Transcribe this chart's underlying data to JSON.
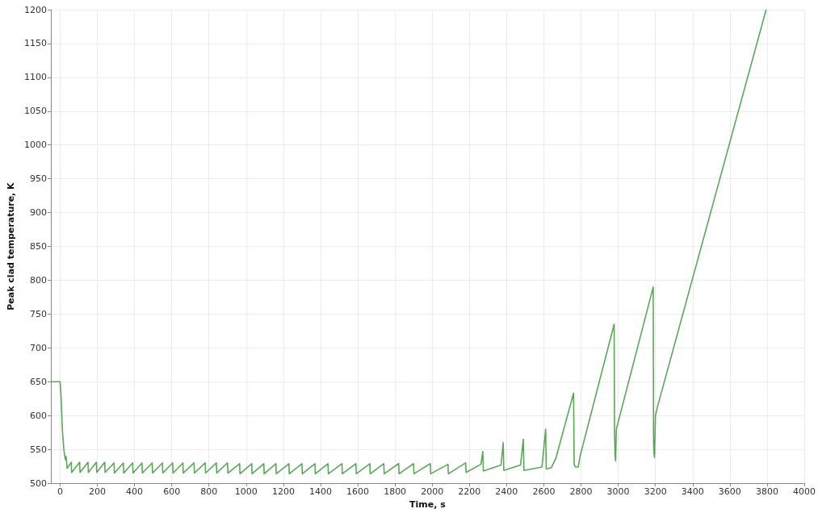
{
  "chart_data": {
    "type": "line",
    "xlabel": "Time, s",
    "ylabel": "Peak clad temperature, K",
    "xlim": [
      -50,
      4000
    ],
    "xticks": [
      0,
      200,
      400,
      600,
      800,
      1000,
      1200,
      1400,
      1600,
      1800,
      2000,
      2200,
      2400,
      2600,
      2800,
      3000,
      3200,
      3400,
      3600,
      3800,
      4000
    ],
    "ylim": [
      500,
      1200
    ],
    "yticks": [
      500,
      550,
      600,
      650,
      700,
      750,
      800,
      850,
      900,
      950,
      1000,
      1050,
      1100,
      1150,
      1200
    ],
    "grid": true,
    "marker": "none",
    "series": [
      {
        "color": "#5aa857",
        "x": [
          -50,
          0,
          5,
          12,
          20,
          28,
          32,
          38,
          60,
          62,
          105,
          107,
          150,
          152,
          195,
          197,
          240,
          242,
          290,
          292,
          340,
          342,
          390,
          392,
          440,
          442,
          495,
          497,
          550,
          552,
          605,
          607,
          660,
          662,
          720,
          722,
          780,
          782,
          840,
          842,
          900,
          902,
          965,
          967,
          1030,
          1032,
          1095,
          1097,
          1160,
          1162,
          1230,
          1232,
          1300,
          1302,
          1370,
          1372,
          1440,
          1442,
          1515,
          1517,
          1590,
          1592,
          1665,
          1667,
          1740,
          1742,
          1820,
          1822,
          1900,
          1902,
          1990,
          1992,
          2085,
          2087,
          2180,
          2182,
          2262,
          2272,
          2275,
          2370,
          2382,
          2385,
          2475,
          2490,
          2493,
          2590,
          2610,
          2613,
          2640,
          2665,
          2760,
          2763,
          2770,
          2785,
          2795,
          2978,
          2980,
          2983,
          2986,
          2990,
          3188,
          3190,
          3192,
          3195,
          3200,
          3210,
          3795
        ],
        "values": [
          650,
          650,
          630,
          580,
          550,
          535,
          540,
          522,
          531,
          516,
          531,
          516,
          531,
          516,
          531,
          516,
          531,
          516,
          530,
          515,
          530,
          515,
          530,
          515,
          530,
          515,
          530,
          515,
          530,
          515,
          530,
          515,
          530,
          515,
          530,
          515,
          530,
          515,
          530,
          515,
          530,
          515,
          529,
          514,
          529,
          514,
          529,
          514,
          529,
          514,
          529,
          514,
          529,
          514,
          529,
          514,
          529,
          514,
          529,
          514,
          529,
          514,
          529,
          514,
          529,
          514,
          529,
          514,
          529,
          514,
          529,
          514,
          528,
          514,
          530,
          516,
          528,
          547,
          518,
          527,
          560,
          519,
          527,
          565,
          519,
          524,
          580,
          521,
          523,
          537,
          633,
          528,
          524,
          524,
          540,
          735,
          580,
          540,
          533,
          580,
          790,
          560,
          545,
          538,
          600,
          612,
          1200
        ]
      }
    ]
  }
}
